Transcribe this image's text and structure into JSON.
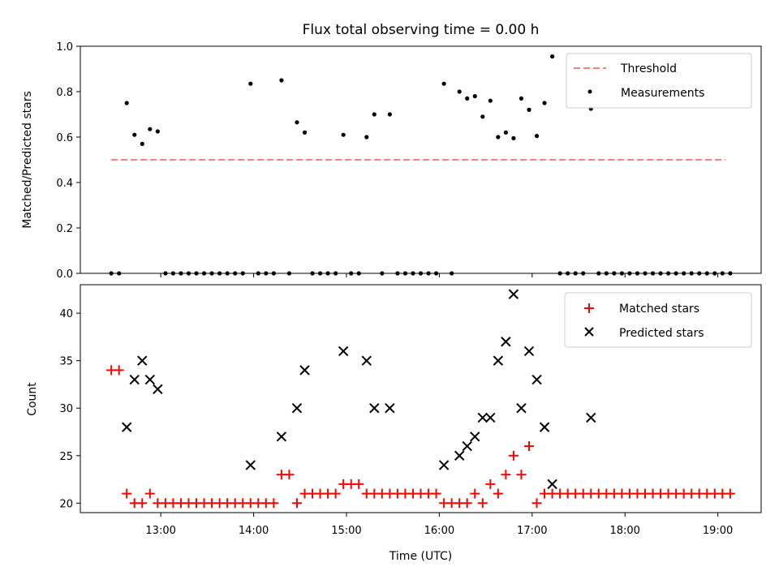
{
  "title": "Flux total observing time = 0.00 h",
  "colors": {
    "threshold": "#ff7f7f",
    "measurement": "#000000",
    "matched": "#ff0000",
    "predicted": "#000000"
  },
  "chart_data": [
    {
      "type": "scatter",
      "ylabel": "Matched/Predicted stars",
      "xlabel": "",
      "ylim": [
        0,
        1.0
      ],
      "xlim": [
        "12:08",
        "19:28"
      ],
      "yticks": [
        "0.0",
        "0.2",
        "0.4",
        "0.6",
        "0.8",
        "1.0"
      ],
      "xticks": [
        "13:00",
        "14:00",
        "15:00",
        "16:00",
        "17:00",
        "18:00",
        "19:00"
      ],
      "show_xtick_labels": false,
      "legend_position": "upper right",
      "legend": [
        "Threshold",
        "Measurements"
      ],
      "threshold": {
        "name": "Threshold",
        "y": 0.5,
        "x_start": "12:28",
        "x_end": "19:05",
        "style": "dashed"
      },
      "series": [
        {
          "name": "Measurements",
          "x": [
            "12:28",
            "12:33",
            "12:38",
            "12:43",
            "12:48",
            "12:53",
            "12:58",
            "13:03",
            "13:08",
            "13:13",
            "13:18",
            "13:23",
            "13:28",
            "13:33",
            "13:38",
            "13:43",
            "13:48",
            "13:53",
            "13:58",
            "14:03",
            "14:08",
            "14:13",
            "14:18",
            "14:23",
            "14:28",
            "14:33",
            "14:38",
            "14:43",
            "14:48",
            "14:53",
            "14:58",
            "15:03",
            "15:08",
            "15:13",
            "15:18",
            "15:23",
            "15:28",
            "15:33",
            "15:38",
            "15:43",
            "15:48",
            "15:53",
            "15:58",
            "16:03",
            "16:08",
            "16:13",
            "16:18",
            "16:23",
            "16:28",
            "16:33",
            "16:38",
            "16:43",
            "16:48",
            "16:53",
            "16:58",
            "17:03",
            "17:08",
            "17:13",
            "17:18",
            "17:23",
            "17:28",
            "17:33",
            "17:38",
            "17:43",
            "17:48",
            "17:53",
            "17:58",
            "18:03",
            "18:08",
            "18:13",
            "18:18",
            "18:23",
            "18:28",
            "18:33",
            "18:38",
            "18:43",
            "18:48",
            "18:53",
            "18:58",
            "19:03",
            "19:08"
          ],
          "y": [
            0,
            0,
            0.75,
            0.61,
            0.57,
            0.635,
            0.625,
            0,
            0,
            0,
            0,
            0,
            0,
            0,
            0,
            0,
            0,
            0,
            0.835,
            0,
            0,
            0,
            0.85,
            0,
            0.665,
            0.62,
            0,
            0,
            0,
            0,
            0.61,
            0,
            0,
            0.6,
            0.7,
            0,
            0.7,
            0,
            0,
            0,
            0,
            0,
            0,
            0.835,
            0,
            0.8,
            0.77,
            0.78,
            0.69,
            0.76,
            0.6,
            0.62,
            0.595,
            0.77,
            0.72,
            0.605,
            0.75,
            0.955,
            0,
            0,
            0,
            0,
            0.725,
            0,
            0,
            0,
            0,
            0,
            0,
            0,
            0,
            0,
            0,
            0,
            0,
            0,
            0,
            0,
            0,
            0,
            0
          ]
        }
      ]
    },
    {
      "type": "scatter",
      "ylabel": "Count",
      "xlabel": "Time (UTC)",
      "ylim": [
        19,
        43
      ],
      "xlim": [
        "12:08",
        "19:28"
      ],
      "yticks": [
        "20",
        "25",
        "30",
        "35",
        "40"
      ],
      "xticks": [
        "13:00",
        "14:00",
        "15:00",
        "16:00",
        "17:00",
        "18:00",
        "19:00"
      ],
      "legend_position": "upper right",
      "legend": [
        "Matched stars",
        "Predicted stars"
      ],
      "series": [
        {
          "name": "Matched stars",
          "marker": "+",
          "x": [
            "12:28",
            "12:33",
            "12:38",
            "12:43",
            "12:48",
            "12:53",
            "12:58",
            "13:03",
            "13:08",
            "13:13",
            "13:18",
            "13:23",
            "13:28",
            "13:33",
            "13:38",
            "13:43",
            "13:48",
            "13:53",
            "13:58",
            "14:03",
            "14:08",
            "14:13",
            "14:18",
            "14:23",
            "14:28",
            "14:33",
            "14:38",
            "14:43",
            "14:48",
            "14:53",
            "14:58",
            "15:03",
            "15:08",
            "15:13",
            "15:18",
            "15:23",
            "15:28",
            "15:33",
            "15:38",
            "15:43",
            "15:48",
            "15:53",
            "15:58",
            "16:03",
            "16:08",
            "16:13",
            "16:18",
            "16:23",
            "16:28",
            "16:33",
            "16:38",
            "16:43",
            "16:48",
            "16:53",
            "16:58",
            "17:03",
            "17:08",
            "17:13",
            "17:18",
            "17:23",
            "17:28",
            "17:33",
            "17:38",
            "17:43",
            "17:48",
            "17:53",
            "17:58",
            "18:03",
            "18:08",
            "18:13",
            "18:18",
            "18:23",
            "18:28",
            "18:33",
            "18:38",
            "18:43",
            "18:48",
            "18:53",
            "18:58",
            "19:03",
            "19:08"
          ],
          "y": [
            34,
            34,
            21,
            20,
            20,
            21,
            20,
            20,
            20,
            20,
            20,
            20,
            20,
            20,
            20,
            20,
            20,
            20,
            20,
            20,
            20,
            20,
            23,
            23,
            20,
            21,
            21,
            21,
            21,
            21,
            22,
            22,
            22,
            21,
            21,
            21,
            21,
            21,
            21,
            21,
            21,
            21,
            21,
            20,
            20,
            20,
            20,
            21,
            20,
            22,
            21,
            23,
            25,
            23,
            26,
            20,
            21,
            21,
            21,
            21,
            21,
            21,
            21,
            21,
            21,
            21,
            21,
            21,
            21,
            21,
            21,
            21,
            21,
            21,
            21,
            21,
            21,
            21,
            21,
            21,
            21
          ]
        },
        {
          "name": "Predicted stars",
          "marker": "x",
          "x": [
            "12:38",
            "12:43",
            "12:48",
            "12:53",
            "12:58",
            "13:58",
            "14:18",
            "14:28",
            "14:33",
            "14:58",
            "15:13",
            "15:18",
            "15:28",
            "16:03",
            "16:13",
            "16:18",
            "16:23",
            "16:28",
            "16:33",
            "16:38",
            "16:43",
            "16:48",
            "16:53",
            "16:58",
            "17:03",
            "17:08",
            "17:13",
            "17:38"
          ],
          "y": [
            28,
            33,
            35,
            33,
            32,
            24,
            27,
            30,
            34,
            36,
            35,
            30,
            30,
            24,
            25,
            26,
            27,
            29,
            29,
            35,
            37,
            42,
            30,
            36,
            33,
            28,
            22,
            29
          ]
        }
      ]
    }
  ]
}
